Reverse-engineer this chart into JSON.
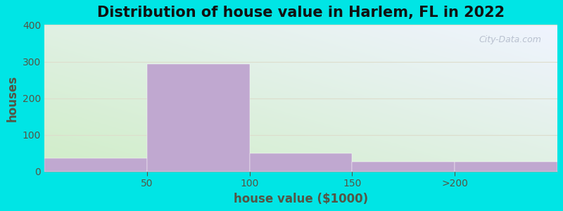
{
  "title": "Distribution of house value in Harlem, FL in 2022",
  "xlabel": "house value ($1000)",
  "ylabel": "houses",
  "bar_values": [
    35,
    293,
    50,
    27,
    27
  ],
  "bar_color": "#c0a8d0",
  "background_outer": "#00e5e5",
  "bg_color_bottom_left": "#d0edc8",
  "bg_color_top_right": "#eaf4f8",
  "xtick_labels": [
    "50",
    "100",
    "150",
    ">200"
  ],
  "xtick_positions": [
    1,
    2,
    3,
    4
  ],
  "ylim": [
    0,
    400
  ],
  "yticks": [
    0,
    100,
    200,
    300,
    400
  ],
  "title_fontsize": 15,
  "axis_label_fontsize": 12,
  "tick_fontsize": 10,
  "title_color": "#111111",
  "label_color": "#555544",
  "tick_color": "#555544",
  "grid_color": "#ddddcc",
  "watermark_text": "City-Data.com"
}
